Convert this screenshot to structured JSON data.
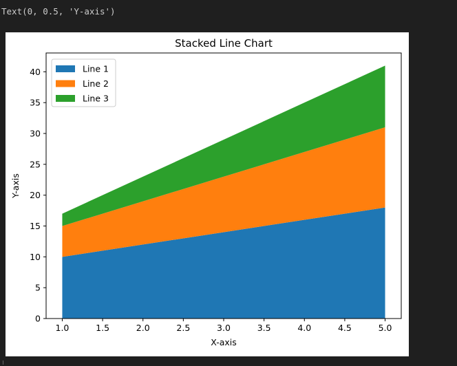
{
  "output_text": "Text(0, 0.5, 'Y-axis')",
  "chart_data": {
    "type": "area",
    "title": "Stacked Line Chart",
    "xlabel": "X-axis",
    "ylabel": "Y-axis",
    "x": [
      1,
      2,
      3,
      4,
      5
    ],
    "series": [
      {
        "name": "Line 1",
        "values": [
          10,
          12,
          14,
          16,
          18
        ],
        "color": "#1f77b4"
      },
      {
        "name": "Line 2",
        "values": [
          5,
          7,
          9,
          11,
          13
        ],
        "color": "#ff7f0e"
      },
      {
        "name": "Line 3",
        "values": [
          2,
          4,
          6,
          8,
          10
        ],
        "color": "#2ca02c"
      }
    ],
    "stacked": true,
    "xlim": [
      0.8,
      5.2
    ],
    "ylim": [
      0,
      43.05
    ],
    "xticks": [
      "1.0",
      "1.5",
      "2.0",
      "2.5",
      "3.0",
      "3.5",
      "4.0",
      "4.5",
      "5.0"
    ],
    "xtick_values": [
      1.0,
      1.5,
      2.0,
      2.5,
      3.0,
      3.5,
      4.0,
      4.5,
      5.0
    ],
    "yticks": [
      "0",
      "5",
      "10",
      "15",
      "20",
      "25",
      "30",
      "35",
      "40"
    ],
    "ytick_values": [
      0,
      5,
      10,
      15,
      20,
      25,
      30,
      35,
      40
    ],
    "legend_position": "top-left",
    "grid": false
  }
}
